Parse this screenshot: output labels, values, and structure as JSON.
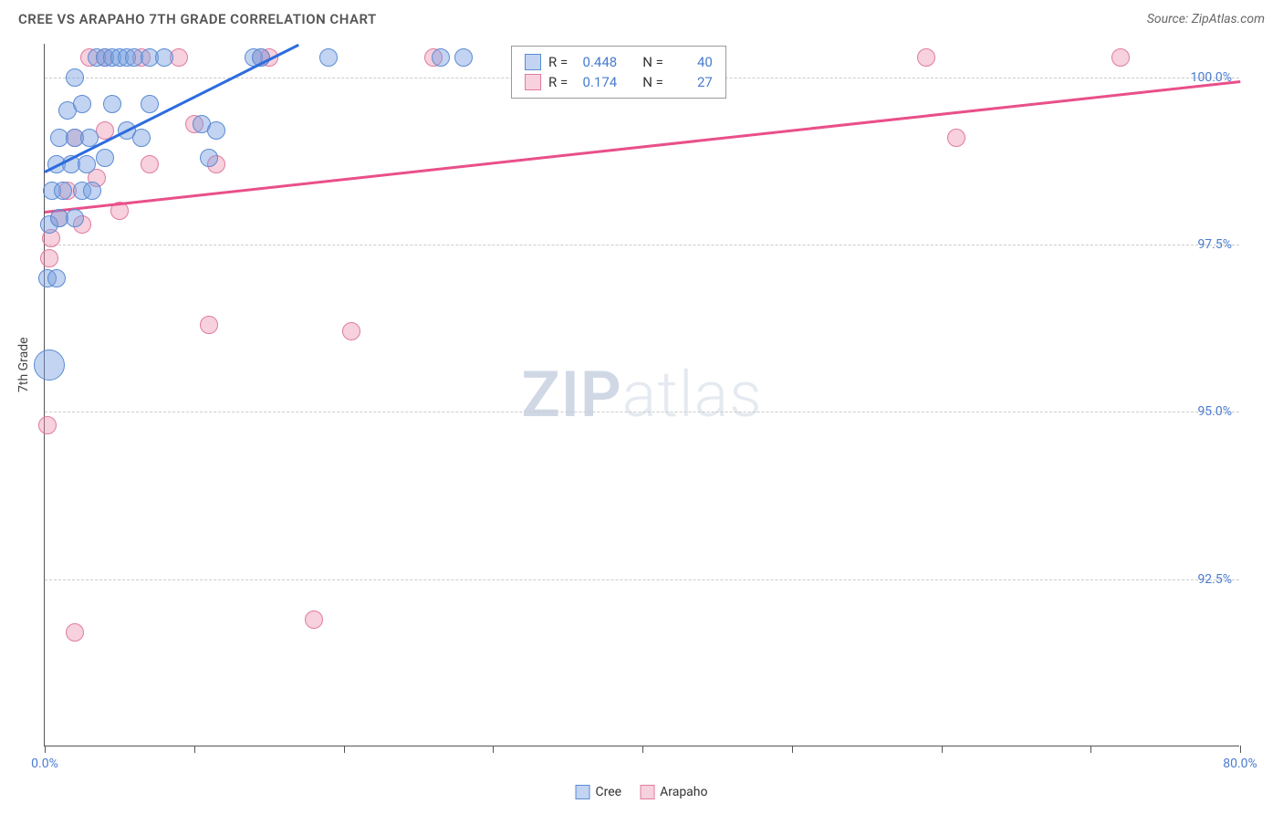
{
  "header": {
    "title": "CREE VS ARAPAHO 7TH GRADE CORRELATION CHART",
    "source": "Source: ZipAtlas.com"
  },
  "chart": {
    "type": "scatter",
    "ylabel": "7th Grade",
    "xlim": [
      0,
      80
    ],
    "ylim": [
      90,
      100.5
    ],
    "xtick_positions": [
      0,
      10,
      20,
      30,
      40,
      50,
      60,
      70,
      80
    ],
    "xtick_labels_visible": {
      "0": "0.0%",
      "80": "80.0%"
    },
    "ytick_positions": [
      92.5,
      95.0,
      97.5,
      100.0
    ],
    "ytick_labels": [
      "92.5%",
      "95.0%",
      "97.5%",
      "100.0%"
    ],
    "background_color": "#ffffff",
    "grid_color": "#cccccc",
    "axis_color": "#555555",
    "label_fontsize": 14,
    "tick_color": "#4a7bd0",
    "series": {
      "cree": {
        "label": "Cree",
        "fill": "rgba(120,160,225,0.45)",
        "stroke": "#5b8bd4",
        "line_color": "#2d6cdf",
        "marker_radius": 10,
        "R": "0.448",
        "N": "40",
        "trend": {
          "x1": 0,
          "y1": 98.6,
          "x2": 17,
          "y2": 100.5
        },
        "points": [
          {
            "x": 0.3,
            "y": 95.7,
            "r": 17
          },
          {
            "x": 0.2,
            "y": 97.0,
            "r": 10
          },
          {
            "x": 0.8,
            "y": 97.0,
            "r": 10
          },
          {
            "x": 0.3,
            "y": 97.8,
            "r": 10
          },
          {
            "x": 1.0,
            "y": 97.9,
            "r": 10
          },
          {
            "x": 2.0,
            "y": 97.9,
            "r": 10
          },
          {
            "x": 0.5,
            "y": 98.3,
            "r": 10
          },
          {
            "x": 1.2,
            "y": 98.3,
            "r": 10
          },
          {
            "x": 2.5,
            "y": 98.3,
            "r": 10
          },
          {
            "x": 3.2,
            "y": 98.3,
            "r": 10
          },
          {
            "x": 0.8,
            "y": 98.7,
            "r": 10
          },
          {
            "x": 1.8,
            "y": 98.7,
            "r": 10
          },
          {
            "x": 2.8,
            "y": 98.7,
            "r": 10
          },
          {
            "x": 4.0,
            "y": 98.8,
            "r": 10
          },
          {
            "x": 11.0,
            "y": 98.8,
            "r": 10
          },
          {
            "x": 1.0,
            "y": 99.1,
            "r": 10
          },
          {
            "x": 2.0,
            "y": 99.1,
            "r": 10
          },
          {
            "x": 3.0,
            "y": 99.1,
            "r": 10
          },
          {
            "x": 5.5,
            "y": 99.2,
            "r": 10
          },
          {
            "x": 6.5,
            "y": 99.1,
            "r": 10
          },
          {
            "x": 10.5,
            "y": 99.3,
            "r": 10
          },
          {
            "x": 11.5,
            "y": 99.2,
            "r": 10
          },
          {
            "x": 1.5,
            "y": 99.5,
            "r": 10
          },
          {
            "x": 2.5,
            "y": 99.6,
            "r": 10
          },
          {
            "x": 4.5,
            "y": 99.6,
            "r": 10
          },
          {
            "x": 7.0,
            "y": 99.6,
            "r": 10
          },
          {
            "x": 2.0,
            "y": 100.0,
            "r": 10
          },
          {
            "x": 3.5,
            "y": 100.3,
            "r": 10
          },
          {
            "x": 4.0,
            "y": 100.3,
            "r": 10
          },
          {
            "x": 4.5,
            "y": 100.3,
            "r": 10
          },
          {
            "x": 5.0,
            "y": 100.3,
            "r": 10
          },
          {
            "x": 5.5,
            "y": 100.3,
            "r": 10
          },
          {
            "x": 6.0,
            "y": 100.3,
            "r": 10
          },
          {
            "x": 7.0,
            "y": 100.3,
            "r": 10
          },
          {
            "x": 8.0,
            "y": 100.3,
            "r": 10
          },
          {
            "x": 14.0,
            "y": 100.3,
            "r": 10
          },
          {
            "x": 14.5,
            "y": 100.3,
            "r": 10
          },
          {
            "x": 19.0,
            "y": 100.3,
            "r": 10
          },
          {
            "x": 26.5,
            "y": 100.3,
            "r": 10
          },
          {
            "x": 28.0,
            "y": 100.3,
            "r": 10
          }
        ]
      },
      "arapaho": {
        "label": "Arapaho",
        "fill": "rgba(235,140,170,0.40)",
        "stroke": "#e07ba0",
        "line_color": "#e94f8a",
        "marker_radius": 10,
        "R": "0.174",
        "N": "27",
        "trend": {
          "x1": 0,
          "y1": 98.0,
          "x2": 80,
          "y2": 99.95
        },
        "points": [
          {
            "x": 2.0,
            "y": 91.7,
            "r": 10
          },
          {
            "x": 18.0,
            "y": 91.9,
            "r": 10
          },
          {
            "x": 0.2,
            "y": 94.8,
            "r": 10
          },
          {
            "x": 20.5,
            "y": 96.2,
            "r": 10
          },
          {
            "x": 11.0,
            "y": 96.3,
            "r": 10
          },
          {
            "x": 0.3,
            "y": 97.3,
            "r": 10
          },
          {
            "x": 0.4,
            "y": 97.6,
            "r": 10
          },
          {
            "x": 1.0,
            "y": 97.9,
            "r": 10
          },
          {
            "x": 2.5,
            "y": 97.8,
            "r": 10
          },
          {
            "x": 5.0,
            "y": 98.0,
            "r": 10
          },
          {
            "x": 1.5,
            "y": 98.3,
            "r": 10
          },
          {
            "x": 3.5,
            "y": 98.5,
            "r": 10
          },
          {
            "x": 7.0,
            "y": 98.7,
            "r": 10
          },
          {
            "x": 11.5,
            "y": 98.7,
            "r": 10
          },
          {
            "x": 2.0,
            "y": 99.1,
            "r": 10
          },
          {
            "x": 4.0,
            "y": 99.2,
            "r": 10
          },
          {
            "x": 10.0,
            "y": 99.3,
            "r": 10
          },
          {
            "x": 61.0,
            "y": 99.1,
            "r": 10
          },
          {
            "x": 3.0,
            "y": 100.3,
            "r": 10
          },
          {
            "x": 4.0,
            "y": 100.3,
            "r": 10
          },
          {
            "x": 6.5,
            "y": 100.3,
            "r": 10
          },
          {
            "x": 9.0,
            "y": 100.3,
            "r": 10
          },
          {
            "x": 14.5,
            "y": 100.3,
            "r": 10
          },
          {
            "x": 15.0,
            "y": 100.3,
            "r": 10
          },
          {
            "x": 26.0,
            "y": 100.3,
            "r": 10
          },
          {
            "x": 59.0,
            "y": 100.3,
            "r": 10
          },
          {
            "x": 72.0,
            "y": 100.3,
            "r": 10
          }
        ]
      }
    }
  },
  "legend_stats": {
    "rows": [
      {
        "swatch_fill": "rgba(120,160,225,0.45)",
        "swatch_stroke": "#5b8bd4",
        "r_label": "R =",
        "r_val": "0.448",
        "n_label": "N =",
        "n_val": "40"
      },
      {
        "swatch_fill": "rgba(235,140,170,0.40)",
        "swatch_stroke": "#e07ba0",
        "r_label": "R =",
        "r_val": "0.174",
        "n_label": "N =",
        "n_val": "27"
      }
    ]
  },
  "bottom_legend": {
    "items": [
      {
        "fill": "rgba(120,160,225,0.45)",
        "stroke": "#5b8bd4",
        "label": "Cree"
      },
      {
        "fill": "rgba(235,140,170,0.40)",
        "stroke": "#e07ba0",
        "label": "Arapaho"
      }
    ]
  },
  "watermark": {
    "bold": "ZIP",
    "rest": "atlas"
  }
}
